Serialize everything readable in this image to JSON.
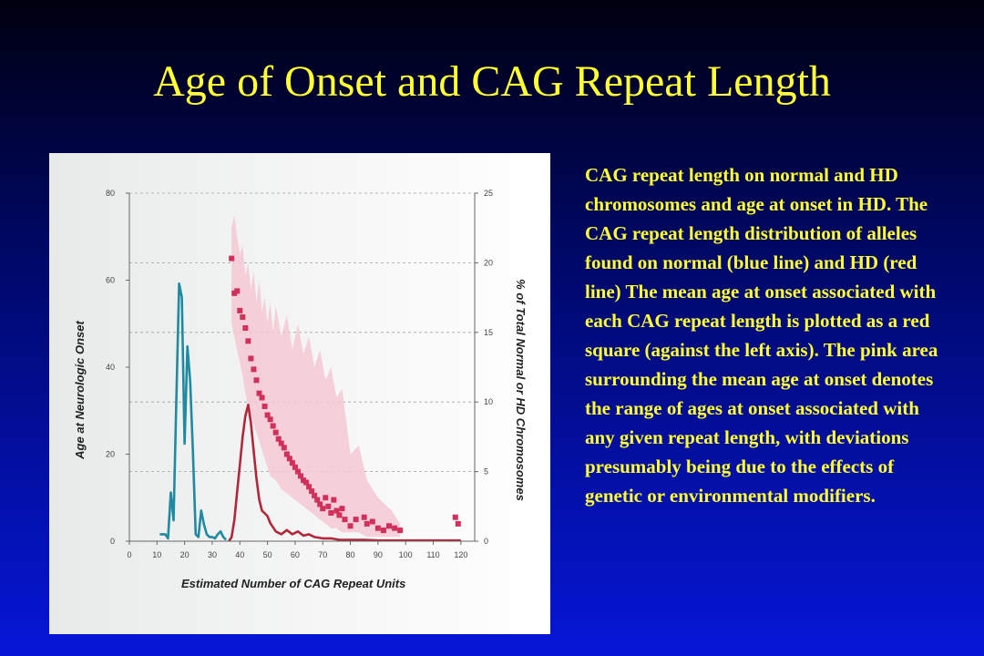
{
  "slide": {
    "title": "Age of Onset and CAG Repeat Length",
    "caption": "CAG repeat length on normal and HD chromosomes and age at onset in HD. The CAG repeat length distribution of alleles found on normal (blue line) and HD (red line) The mean age at onset associated with each CAG repeat length is plotted as a red square (against the left axis). The pink area surrounding the mean age at onset denotes the range of ages at onset associated with any given repeat length, with deviations presumably being due to the effects of genetic or environmental modifiers."
  },
  "colors": {
    "title": "#ffff33",
    "normal_line": "#1f8aa0",
    "hd_line": "#b0283c",
    "mean_square": "#d0305a",
    "range_area": "#f4c8d4"
  },
  "chart_data": {
    "type": "line",
    "title": "",
    "xlabel": "Estimated Number of CAG Repeat Units",
    "ylabel_left": "Age at Neurologic Onset",
    "ylabel_right": "% of Total Normal or HD Chromosomes",
    "xlim": [
      0,
      125
    ],
    "ylim_left": [
      0,
      80
    ],
    "ylim_right": [
      0,
      25
    ],
    "x_ticks": [
      "0",
      "10",
      "20",
      "30",
      "40",
      "50",
      "60",
      "70",
      "80",
      "90",
      "100",
      "110",
      "120"
    ],
    "y_left_ticks": [
      "0",
      "20",
      "40",
      "60",
      "80"
    ],
    "y_right_ticks": [
      "0",
      "5",
      "10",
      "15",
      "20",
      "25"
    ],
    "grid": "dashed horizontal",
    "series": [
      {
        "name": "normal",
        "axis": "right",
        "points": [
          [
            11,
            0.5
          ],
          [
            13,
            0.5
          ],
          [
            14,
            0.2
          ],
          [
            15,
            3.5
          ],
          [
            16,
            1.5
          ],
          [
            17,
            10
          ],
          [
            18,
            18.5
          ],
          [
            19,
            17.5
          ],
          [
            20,
            7
          ],
          [
            21,
            14
          ],
          [
            22,
            11.5
          ],
          [
            23,
            6.5
          ],
          [
            24,
            0.5
          ],
          [
            25,
            0.3
          ],
          [
            26,
            2.2
          ],
          [
            27,
            1.2
          ],
          [
            28,
            0.5
          ],
          [
            29,
            0.3
          ],
          [
            30,
            0.3
          ],
          [
            31,
            0.2
          ],
          [
            32,
            0.5
          ],
          [
            33,
            0.7
          ],
          [
            34,
            0.3
          ],
          [
            35,
            0.1
          ]
        ]
      },
      {
        "name": "HD",
        "axis": "right",
        "points": [
          [
            36,
            0
          ],
          [
            37,
            0.3
          ],
          [
            38,
            1.5
          ],
          [
            39,
            3.5
          ],
          [
            40,
            5.5
          ],
          [
            41,
            7.5
          ],
          [
            42,
            9
          ],
          [
            43,
            9.8
          ],
          [
            44,
            8.5
          ],
          [
            45,
            6.5
          ],
          [
            46,
            4.5
          ],
          [
            47,
            3
          ],
          [
            48,
            2.2
          ],
          [
            49,
            2
          ],
          [
            50,
            1.8
          ],
          [
            51,
            1.3
          ],
          [
            52,
            1
          ],
          [
            53,
            0.7
          ],
          [
            55,
            0.5
          ],
          [
            57,
            0.8
          ],
          [
            59,
            0.5
          ],
          [
            61,
            0.7
          ],
          [
            63,
            0.4
          ],
          [
            65,
            0.5
          ],
          [
            67,
            0.3
          ],
          [
            70,
            0.2
          ],
          [
            73,
            0.2
          ],
          [
            76,
            0.1
          ],
          [
            80,
            0.1
          ],
          [
            85,
            0.1
          ],
          [
            90,
            0.05
          ],
          [
            95,
            0.05
          ],
          [
            100,
            0.05
          ],
          [
            110,
            0.05
          ],
          [
            120,
            0.05
          ]
        ]
      }
    ],
    "mean_onset": {
      "axis": "left",
      "points": [
        [
          37,
          65
        ],
        [
          38,
          57
        ],
        [
          39,
          57.5
        ],
        [
          40,
          53
        ],
        [
          41,
          51.5
        ],
        [
          42,
          49
        ],
        [
          43,
          46
        ],
        [
          44,
          42
        ],
        [
          45,
          39.5
        ],
        [
          46,
          37
        ],
        [
          47,
          34
        ],
        [
          48,
          33
        ],
        [
          49,
          31
        ],
        [
          50,
          29
        ],
        [
          51,
          28
        ],
        [
          52,
          26.5
        ],
        [
          53,
          25
        ],
        [
          54,
          23.5
        ],
        [
          55,
          22.5
        ],
        [
          56,
          21.5
        ],
        [
          57,
          20
        ],
        [
          58,
          19
        ],
        [
          59,
          18
        ],
        [
          60,
          17
        ],
        [
          61,
          16
        ],
        [
          62,
          15
        ],
        [
          63,
          14
        ],
        [
          64,
          13.5
        ],
        [
          65,
          12.5
        ],
        [
          66,
          11.5
        ],
        [
          67,
          10.5
        ],
        [
          68,
          9.5
        ],
        [
          69,
          8.5
        ],
        [
          70,
          7.5
        ],
        [
          71,
          10
        ],
        [
          72,
          8
        ],
        [
          73,
          6.5
        ],
        [
          74,
          9.5
        ],
        [
          75,
          7
        ],
        [
          76,
          6
        ],
        [
          77,
          7.5
        ],
        [
          78,
          5
        ],
        [
          80,
          3.5
        ],
        [
          82,
          5
        ],
        [
          85,
          5.5
        ],
        [
          86,
          4
        ],
        [
          88,
          4.5
        ],
        [
          90,
          3
        ],
        [
          92,
          2.5
        ],
        [
          94,
          3.5
        ],
        [
          96,
          3
        ],
        [
          98,
          2.5
        ],
        [
          118,
          5.5
        ],
        [
          119,
          4
        ]
      ]
    },
    "onset_range": {
      "axis": "left",
      "upper": [
        [
          37,
          72
        ],
        [
          38,
          75
        ],
        [
          39,
          70
        ],
        [
          40,
          66
        ],
        [
          41,
          68
        ],
        [
          42,
          61
        ],
        [
          43,
          64
        ],
        [
          44,
          58
        ],
        [
          45,
          62
        ],
        [
          46,
          55
        ],
        [
          47,
          60
        ],
        [
          48,
          53
        ],
        [
          49,
          56
        ],
        [
          50,
          50
        ],
        [
          51,
          55
        ],
        [
          52,
          48
        ],
        [
          53,
          54
        ],
        [
          55,
          47
        ],
        [
          57,
          52
        ],
        [
          59,
          44
        ],
        [
          61,
          50
        ],
        [
          63,
          43
        ],
        [
          65,
          47
        ],
        [
          67,
          40
        ],
        [
          69,
          44
        ],
        [
          71,
          37
        ],
        [
          73,
          40
        ],
        [
          75,
          33
        ],
        [
          77,
          35
        ],
        [
          80,
          20
        ],
        [
          83,
          22
        ],
        [
          86,
          14
        ],
        [
          90,
          10
        ],
        [
          95,
          7
        ],
        [
          98,
          4
        ]
      ],
      "lower": [
        [
          98,
          1
        ],
        [
          95,
          1
        ],
        [
          90,
          1
        ],
        [
          86,
          1
        ],
        [
          83,
          2
        ],
        [
          80,
          2
        ],
        [
          77,
          2
        ],
        [
          75,
          3
        ],
        [
          73,
          3
        ],
        [
          71,
          4
        ],
        [
          69,
          5
        ],
        [
          67,
          6
        ],
        [
          65,
          7
        ],
        [
          63,
          8
        ],
        [
          61,
          9
        ],
        [
          59,
          10
        ],
        [
          57,
          11
        ],
        [
          55,
          12
        ],
        [
          53,
          14
        ],
        [
          51,
          15
        ],
        [
          50,
          17
        ],
        [
          49,
          19
        ],
        [
          48,
          21
        ],
        [
          47,
          23
        ],
        [
          46,
          25
        ],
        [
          45,
          27
        ],
        [
          44,
          29
        ],
        [
          43,
          31
        ],
        [
          42,
          34
        ],
        [
          41,
          38
        ],
        [
          40,
          41
        ],
        [
          39,
          44
        ],
        [
          38,
          47
        ],
        [
          37,
          50
        ]
      ]
    }
  }
}
